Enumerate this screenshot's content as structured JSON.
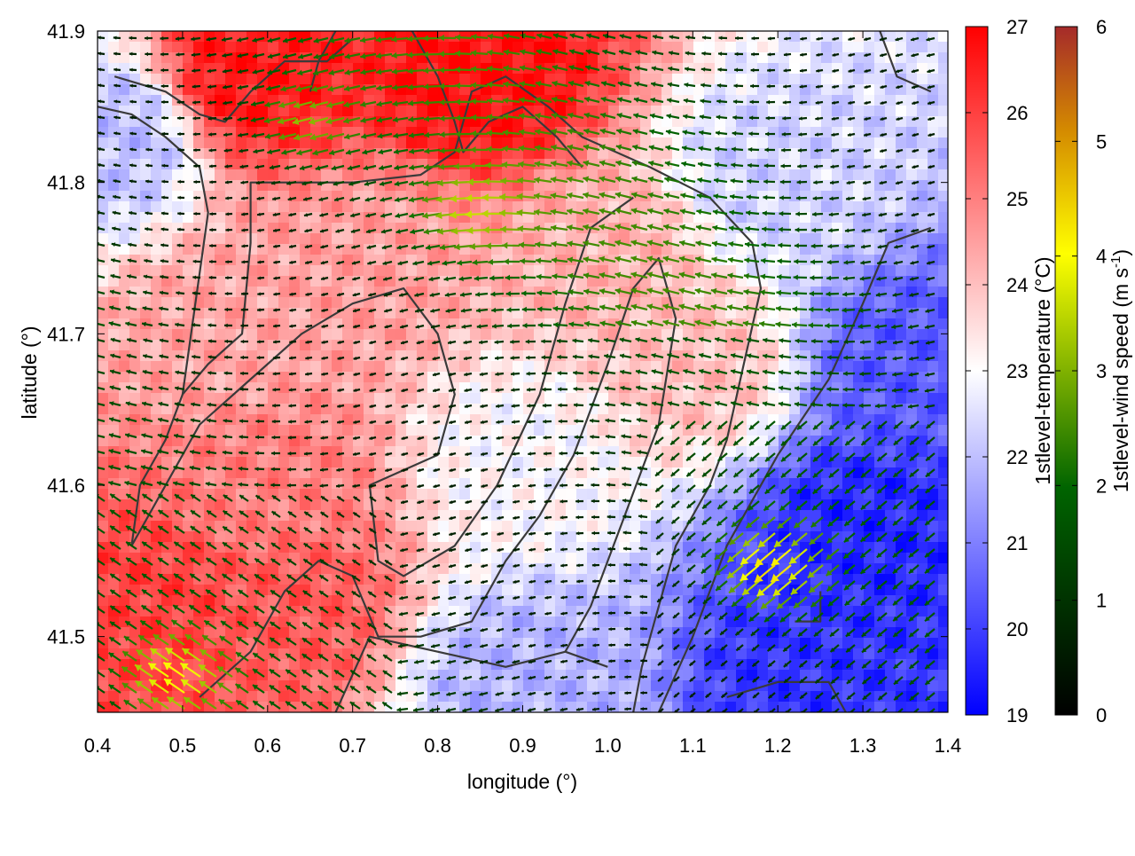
{
  "chart_data": {
    "type": "heatmap",
    "title": "",
    "xlabel": "longitude (°)",
    "ylabel": "latitude (°)",
    "xlim": [
      0.4,
      1.4
    ],
    "ylim": [
      41.45,
      41.9
    ],
    "x_ticks": [
      "0.4",
      "0.5",
      "0.6",
      "0.7",
      "0.8",
      "0.9",
      "1.0",
      "1.1",
      "1.2",
      "1.3",
      "1.4"
    ],
    "y_ticks": [
      "41.5",
      "41.6",
      "41.7",
      "41.8",
      "41.9"
    ],
    "grid": false,
    "legend": "none",
    "colorbars": [
      {
        "name": "temperature",
        "label": "1stlevel-temperature (°C)",
        "range": [
          19,
          27
        ],
        "ticks": [
          "19",
          "20",
          "21",
          "22",
          "23",
          "24",
          "25",
          "26",
          "27"
        ],
        "colors": [
          "#0000ff",
          "#ffffff",
          "#ff0000"
        ]
      },
      {
        "name": "wind",
        "label_main": "1stlevel-wind speed (m s",
        "label_sup": "-1",
        "label_end": ")",
        "range": [
          0,
          6
        ],
        "ticks": [
          "0",
          "1",
          "2",
          "3",
          "4",
          "5",
          "6"
        ],
        "colors": [
          "#000000",
          "#006400",
          "#ffff00",
          "#d48a00",
          "#a52a2a"
        ]
      }
    ],
    "temperature_field_regions": [
      {
        "lon": 0.47,
        "lat": 41.52,
        "temp": 26.0
      },
      {
        "lon": 0.62,
        "lat": 41.52,
        "temp": 25.6
      },
      {
        "lon": 0.58,
        "lat": 41.87,
        "temp": 26.6
      },
      {
        "lon": 0.85,
        "lat": 41.87,
        "temp": 26.8
      },
      {
        "lon": 0.6,
        "lat": 41.6,
        "temp": 25.0
      },
      {
        "lon": 0.72,
        "lat": 41.75,
        "temp": 24.5
      },
      {
        "lon": 1.0,
        "lat": 41.75,
        "temp": 24.2
      },
      {
        "lon": 0.55,
        "lat": 41.7,
        "temp": 24.4
      },
      {
        "lon": 0.9,
        "lat": 41.62,
        "temp": 23.0
      },
      {
        "lon": 1.3,
        "lat": 41.57,
        "temp": 19.6
      },
      {
        "lon": 1.25,
        "lat": 41.48,
        "temp": 19.8
      },
      {
        "lon": 1.35,
        "lat": 41.68,
        "temp": 20.4
      },
      {
        "lon": 1.2,
        "lat": 41.8,
        "temp": 22.3
      },
      {
        "lon": 0.42,
        "lat": 41.83,
        "temp": 22.0
      },
      {
        "lon": 0.9,
        "lat": 41.47,
        "temp": 21.8
      },
      {
        "lon": 1.1,
        "lat": 41.68,
        "temp": 24.0
      }
    ],
    "wind_field": {
      "direction": "predominantly westward (easterly flow), with northwestward flow in the southeast",
      "speed_range": [
        0,
        5
      ],
      "strong_zones": [
        {
          "lon": 1.2,
          "lat": 41.55,
          "speed": 4.5
        },
        {
          "lon": 0.5,
          "lat": 41.47,
          "speed": 4.0
        },
        {
          "lon": 0.85,
          "lat": 41.78,
          "speed": 3.0
        },
        {
          "lon": 0.65,
          "lat": 41.84,
          "speed": 3.2
        }
      ]
    }
  }
}
